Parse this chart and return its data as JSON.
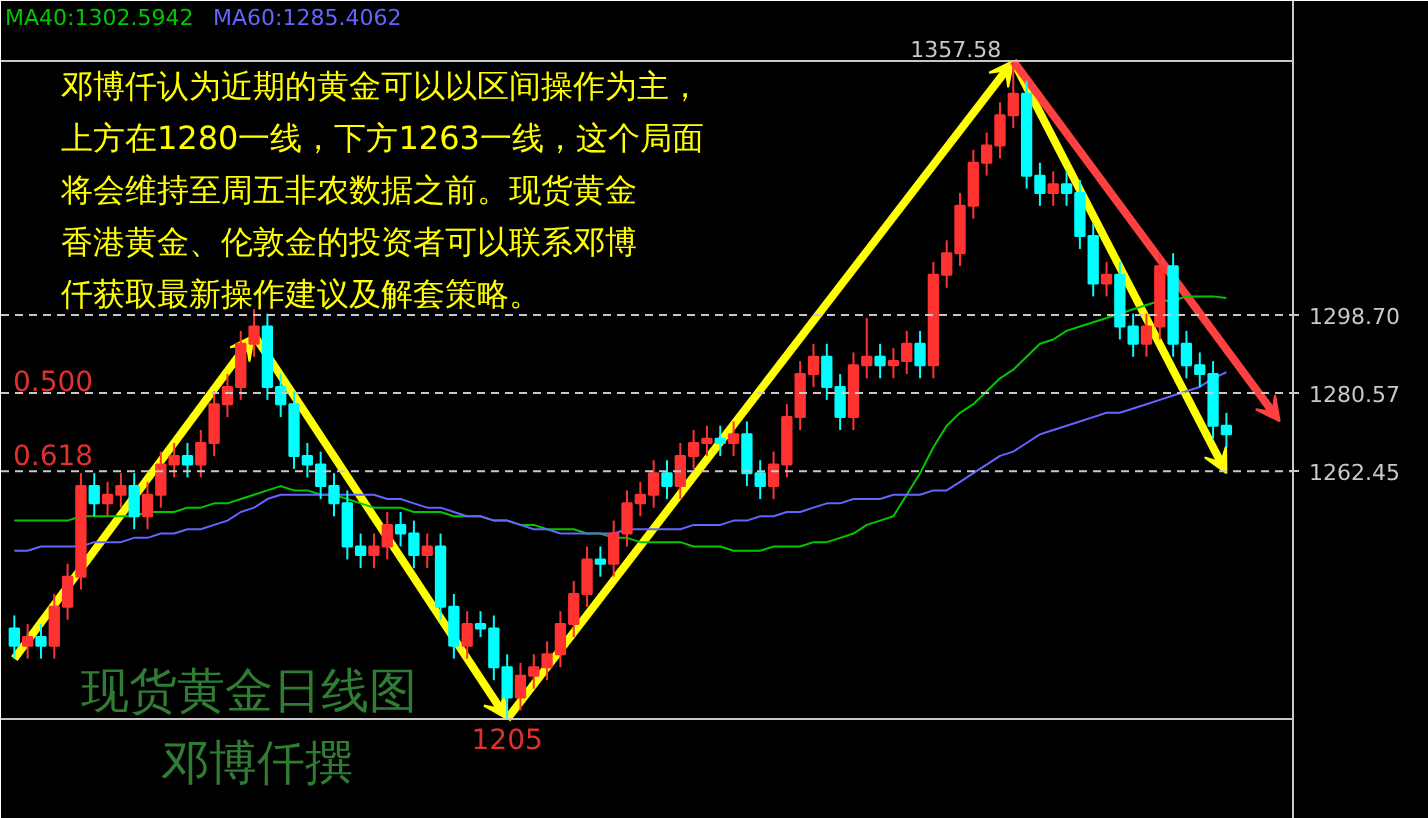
{
  "chart_data": {
    "type": "candlestick",
    "categories": [
      null,
      null,
      null,
      null,
      null,
      null,
      null,
      null,
      null,
      null,
      null,
      null,
      null,
      null,
      null,
      null,
      null,
      null,
      null,
      null,
      null,
      null,
      null,
      null,
      null,
      null,
      null,
      null,
      null,
      null,
      null,
      null,
      null,
      null,
      null,
      null,
      null,
      null,
      null,
      null,
      null,
      null,
      null,
      null,
      null,
      null,
      null,
      null,
      null,
      null,
      null,
      null,
      null,
      null,
      null,
      null,
      null,
      null,
      null,
      null,
      null,
      null,
      null,
      null,
      null,
      null,
      null,
      null,
      null,
      null,
      null,
      null,
      null,
      null,
      null,
      null,
      null,
      null,
      null,
      null,
      null,
      null,
      null,
      null,
      null,
      null,
      null,
      null,
      null,
      null,
      null,
      null
    ],
    "ohlc": [
      [
        1226,
        1229,
        1219,
        1222
      ],
      [
        1222,
        1227,
        1219,
        1224
      ],
      [
        1224,
        1227,
        1219,
        1222
      ],
      [
        1222,
        1234,
        1219,
        1231
      ],
      [
        1231,
        1241,
        1228,
        1238
      ],
      [
        1238,
        1262,
        1235,
        1259
      ],
      [
        1259,
        1262,
        1252,
        1255
      ],
      [
        1255,
        1260,
        1252,
        1257
      ],
      [
        1257,
        1262,
        1254,
        1259
      ],
      [
        1259,
        1262,
        1249,
        1252
      ],
      [
        1252,
        1260,
        1249,
        1257
      ],
      [
        1257,
        1267,
        1254,
        1264
      ],
      [
        1264,
        1269,
        1261,
        1266
      ],
      [
        1266,
        1269,
        1261,
        1264
      ],
      [
        1264,
        1272,
        1261,
        1269
      ],
      [
        1269,
        1281,
        1266,
        1278
      ],
      [
        1278,
        1285,
        1275,
        1282
      ],
      [
        1282,
        1295,
        1279,
        1292
      ],
      [
        1292,
        1300,
        1289,
        1296
      ],
      [
        1296,
        1299,
        1279,
        1282
      ],
      [
        1282,
        1285,
        1275,
        1278
      ],
      [
        1278,
        1281,
        1263,
        1266
      ],
      [
        1266,
        1269,
        1261,
        1264
      ],
      [
        1264,
        1267,
        1256,
        1259
      ],
      [
        1259,
        1262,
        1252,
        1255
      ],
      [
        1255,
        1258,
        1242,
        1245
      ],
      [
        1245,
        1248,
        1240,
        1243
      ],
      [
        1243,
        1248,
        1240,
        1245
      ],
      [
        1245,
        1253,
        1242,
        1250
      ],
      [
        1250,
        1253,
        1245,
        1248
      ],
      [
        1248,
        1251,
        1240,
        1243
      ],
      [
        1243,
        1248,
        1240,
        1245
      ],
      [
        1245,
        1248,
        1228,
        1231
      ],
      [
        1231,
        1234,
        1219,
        1222
      ],
      [
        1222,
        1230,
        1219,
        1227
      ],
      [
        1227,
        1230,
        1224,
        1226
      ],
      [
        1226,
        1229,
        1214,
        1217
      ],
      [
        1217,
        1220,
        1205,
        1210
      ],
      [
        1210,
        1218,
        1207,
        1215
      ],
      [
        1215,
        1220,
        1212,
        1217
      ],
      [
        1217,
        1223,
        1214,
        1220
      ],
      [
        1220,
        1230,
        1217,
        1227
      ],
      [
        1227,
        1237,
        1224,
        1234
      ],
      [
        1234,
        1245,
        1231,
        1242
      ],
      [
        1242,
        1245,
        1238,
        1241
      ],
      [
        1241,
        1251,
        1238,
        1248
      ],
      [
        1248,
        1258,
        1245,
        1255
      ],
      [
        1255,
        1260,
        1252,
        1257
      ],
      [
        1257,
        1265,
        1254,
        1262
      ],
      [
        1262,
        1265,
        1256,
        1259
      ],
      [
        1259,
        1269,
        1256,
        1266
      ],
      [
        1266,
        1272,
        1263,
        1269
      ],
      [
        1269,
        1273,
        1266,
        1270
      ],
      [
        1270,
        1273,
        1266,
        1269
      ],
      [
        1269,
        1274,
        1266,
        1271
      ],
      [
        1271,
        1274,
        1259,
        1262
      ],
      [
        1262,
        1265,
        1256,
        1259
      ],
      [
        1259,
        1267,
        1256,
        1264
      ],
      [
        1264,
        1278,
        1261,
        1275
      ],
      [
        1275,
        1288,
        1272,
        1285
      ],
      [
        1285,
        1292,
        1282,
        1289
      ],
      [
        1289,
        1292,
        1279,
        1282
      ],
      [
        1282,
        1285,
        1272,
        1275
      ],
      [
        1275,
        1290,
        1272,
        1287
      ],
      [
        1287,
        1298,
        1284,
        1289
      ],
      [
        1289,
        1292,
        1284,
        1287
      ],
      [
        1287,
        1291,
        1284,
        1288
      ],
      [
        1288,
        1295,
        1285,
        1292
      ],
      [
        1292,
        1295,
        1284,
        1287
      ],
      [
        1287,
        1311,
        1284,
        1308
      ],
      [
        1308,
        1316,
        1305,
        1313
      ],
      [
        1313,
        1327,
        1310,
        1324
      ],
      [
        1324,
        1337,
        1321,
        1334
      ],
      [
        1334,
        1341,
        1331,
        1338
      ],
      [
        1338,
        1348,
        1335,
        1345
      ],
      [
        1345,
        1357.58,
        1342,
        1350
      ],
      [
        1350,
        1353,
        1328,
        1331
      ],
      [
        1331,
        1334,
        1324,
        1327
      ],
      [
        1327,
        1332,
        1324,
        1329
      ],
      [
        1329,
        1332,
        1324,
        1327
      ],
      [
        1327,
        1330,
        1314,
        1317
      ],
      [
        1317,
        1320,
        1303,
        1306
      ],
      [
        1306,
        1311,
        1303,
        1308
      ],
      [
        1308,
        1311,
        1293,
        1296
      ],
      [
        1296,
        1299,
        1289,
        1292
      ],
      [
        1292,
        1299,
        1289,
        1296
      ],
      [
        1296,
        1313,
        1293,
        1310
      ],
      [
        1310,
        1313,
        1289,
        1292
      ],
      [
        1292,
        1295,
        1284,
        1287
      ],
      [
        1287,
        1290,
        1282,
        1285
      ],
      [
        1285,
        1288,
        1270,
        1273
      ],
      [
        1273,
        1276,
        1268,
        1271
      ]
    ],
    "series": [
      {
        "name": "MA40:1302.5942",
        "type": "line",
        "color": "#00c800",
        "values": [
          1251,
          1251,
          1251,
          1251,
          1251,
          1252,
          1252,
          1252,
          1252,
          1252,
          1253,
          1253,
          1253,
          1254,
          1254,
          1255,
          1255,
          1256,
          1257,
          1258,
          1259,
          1258,
          1258,
          1257,
          1257,
          1256,
          1255,
          1254,
          1254,
          1254,
          1253,
          1253,
          1253,
          1252,
          1252,
          1252,
          1251,
          1251,
          1250,
          1250,
          1249,
          1249,
          1249,
          1248,
          1248,
          1247,
          1247,
          1246,
          1246,
          1246,
          1246,
          1245,
          1245,
          1245,
          1244,
          1244,
          1244,
          1245,
          1245,
          1245,
          1246,
          1246,
          1247,
          1248,
          1250,
          1251,
          1252,
          1257,
          1262,
          1268,
          1273,
          1276,
          1278,
          1281,
          1284,
          1286,
          1289,
          1292,
          1293,
          1295,
          1296,
          1297,
          1298,
          1299,
          1300,
          1301,
          1302,
          1302,
          1303,
          1303,
          1303,
          1302.6
        ]
      },
      {
        "name": "MA60:1285.4062",
        "type": "line",
        "color": "#6464ff",
        "values": [
          1244,
          1244,
          1245,
          1245,
          1245,
          1245,
          1246,
          1246,
          1246,
          1247,
          1247,
          1248,
          1248,
          1249,
          1249,
          1250,
          1251,
          1253,
          1254,
          1256,
          1257,
          1257,
          1257,
          1257,
          1257,
          1257,
          1257,
          1257,
          1256,
          1256,
          1255,
          1254,
          1254,
          1253,
          1252,
          1252,
          1251,
          1251,
          1250,
          1249,
          1249,
          1248,
          1248,
          1248,
          1248,
          1248,
          1249,
          1249,
          1249,
          1249,
          1249,
          1250,
          1250,
          1250,
          1251,
          1251,
          1252,
          1252,
          1253,
          1253,
          1254,
          1255,
          1255,
          1256,
          1256,
          1256,
          1257,
          1257,
          1257,
          1258,
          1258,
          1260,
          1262,
          1264,
          1266,
          1267,
          1269,
          1271,
          1272,
          1273,
          1274,
          1275,
          1276,
          1276,
          1277,
          1278,
          1279,
          1280,
          1281,
          1282,
          1284,
          1285.4
        ]
      }
    ],
    "ylim": [
      1181.8,
      1371.5
    ],
    "yticks": [
      {
        "value": 1298.7,
        "label": "1298.70"
      },
      {
        "value": 1280.57,
        "label": "1280.57"
      },
      {
        "value": 1262.45,
        "label": "1262.45"
      }
    ],
    "tick_labels": "y",
    "ref_lines": [
      {
        "axis": "y",
        "value": 1357.58,
        "label": "1357.58",
        "color": "#c8c8c8",
        "line_style": "solid"
      },
      {
        "axis": "y",
        "value": 1298.7,
        "color": "#c8c8c8",
        "line_style": "dashed"
      },
      {
        "axis": "y",
        "value": 1280.57,
        "color": "#c8c8c8",
        "line_style": "dashed"
      },
      {
        "axis": "y",
        "value": 1262.45,
        "color": "#c8c8c8",
        "line_style": "dashed"
      },
      {
        "axis": "y",
        "value": 1205,
        "label": "1205",
        "color": "#c8c8c8",
        "line_style": "solid"
      }
    ],
    "annotations": [
      "邓博仟认为近期的黄金可以以区间操作为主，",
      "上方在1280一线，下方1263一线，这个局面",
      "将会维持至周五非农数据之前。现货黄金",
      "香港黄金、伦敦金的投资者可以联系邓博",
      "仟获取最新操作建议及解套策略。",
      "0.500",
      "0.618",
      "现货黄金日线图",
      "邓博仟撰"
    ]
  }
}
